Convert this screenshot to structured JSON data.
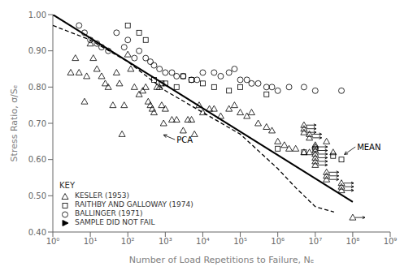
{
  "chart_data": {
    "type": "scatter",
    "xlabel": "Number of Load Repetitions to Failure, Nₑ",
    "ylabel": "Stress Ratio, σ/Sₑ",
    "log": "x",
    "xlim": [
      1,
      1000000000
    ],
    "xticks": [
      {
        "value": 1,
        "label": "10⁰"
      },
      {
        "value": 10,
        "label": "10¹"
      },
      {
        "value": 100,
        "label": "10²"
      },
      {
        "value": 1000,
        "label": "10³"
      },
      {
        "value": 10000,
        "label": "10⁴"
      },
      {
        "value": 100000,
        "label": "10⁵"
      },
      {
        "value": 1000000,
        "label": "10⁶"
      },
      {
        "value": 10000000,
        "label": "10⁷"
      },
      {
        "value": 100000000,
        "label": "10⁸"
      },
      {
        "value": 1000000000,
        "label": "10⁹"
      }
    ],
    "ylim": [
      0.4,
      1.0
    ],
    "yticks": [
      {
        "value": 0.4,
        "label": "0.40"
      },
      {
        "value": 0.5,
        "label": "0.50"
      },
      {
        "value": 0.6,
        "label": "0.60"
      },
      {
        "value": 0.7,
        "label": "0.70"
      },
      {
        "value": 0.8,
        "label": "0.80"
      },
      {
        "value": 0.9,
        "label": "0.90"
      },
      {
        "value": 1.0,
        "label": "1.00"
      }
    ],
    "grid": false,
    "legend": "lower left",
    "legend_title": "KEY",
    "series": [
      {
        "name": "KESLER (1953)",
        "color": "black",
        "marker": "triangle",
        "values": [
          [
            3,
            0.84
          ],
          [
            4,
            0.88
          ],
          [
            5,
            0.84
          ],
          [
            7,
            0.76
          ],
          [
            8,
            0.83
          ],
          [
            10,
            0.92
          ],
          [
            12,
            0.88
          ],
          [
            15,
            0.85
          ],
          [
            20,
            0.83
          ],
          [
            25,
            0.81
          ],
          [
            30,
            0.8
          ],
          [
            40,
            0.75
          ],
          [
            50,
            0.84
          ],
          [
            60,
            0.81
          ],
          [
            70,
            0.67
          ],
          [
            80,
            0.75
          ],
          [
            100,
            0.89
          ],
          [
            120,
            0.85
          ],
          [
            150,
            0.8
          ],
          [
            200,
            0.78
          ],
          [
            250,
            0.79
          ],
          [
            300,
            0.8
          ],
          [
            350,
            0.76
          ],
          [
            400,
            0.75
          ],
          [
            450,
            0.74
          ],
          [
            500,
            0.73
          ],
          [
            600,
            0.8
          ],
          [
            700,
            0.8
          ],
          [
            800,
            0.75
          ],
          [
            900,
            0.7
          ],
          [
            1000,
            0.74
          ],
          [
            1500,
            0.71
          ],
          [
            2000,
            0.71
          ],
          [
            3000,
            0.68
          ],
          [
            4000,
            0.71
          ],
          [
            5000,
            0.71
          ],
          [
            6000,
            0.67
          ],
          [
            8000,
            0.75
          ],
          [
            10000,
            0.73
          ],
          [
            15000,
            0.74
          ],
          [
            20000,
            0.74
          ],
          [
            30000,
            0.72
          ],
          [
            50000,
            0.74
          ],
          [
            70000,
            0.75
          ],
          [
            100000,
            0.73
          ],
          [
            150000,
            0.72
          ],
          [
            200000,
            0.73
          ],
          [
            300000,
            0.7
          ],
          [
            500000,
            0.69
          ],
          [
            700000,
            0.68
          ],
          [
            1000000,
            0.65
          ],
          [
            1500000,
            0.64
          ],
          [
            2000000,
            0.63
          ],
          [
            3000000,
            0.63
          ],
          [
            5000000,
            0.62
          ],
          [
            7000000,
            0.62
          ],
          [
            10000000,
            0.64
          ],
          [
            20000000,
            0.65
          ],
          [
            30000000,
            0.62
          ]
        ]
      },
      {
        "name": "RAITHBY AND GALLOWAY (1974)",
        "color": "black",
        "marker": "square",
        "values": [
          [
            100,
            0.97
          ],
          [
            200,
            0.95
          ],
          [
            300,
            0.93
          ],
          [
            500,
            0.82
          ],
          [
            800,
            0.81
          ],
          [
            1000,
            0.81
          ],
          [
            2000,
            0.8
          ],
          [
            3000,
            0.83
          ],
          [
            5000,
            0.82
          ],
          [
            10000,
            0.81
          ],
          [
            20000,
            0.8
          ],
          [
            50000,
            0.79
          ],
          [
            100000,
            0.8
          ],
          [
            500000,
            0.78
          ],
          [
            1000000,
            0.63
          ],
          [
            5000000,
            0.62
          ],
          [
            10000000,
            0.63
          ],
          [
            30000000,
            0.61
          ],
          [
            50000000,
            0.6
          ]
        ]
      },
      {
        "name": "BALLINGER (1971)",
        "color": "black",
        "marker": "circle",
        "values": [
          [
            5,
            0.97
          ],
          [
            7,
            0.95
          ],
          [
            10,
            0.93
          ],
          [
            15,
            0.92
          ],
          [
            20,
            0.91
          ],
          [
            30,
            0.9
          ],
          [
            50,
            0.95
          ],
          [
            80,
            0.91
          ],
          [
            100,
            0.93
          ],
          [
            150,
            0.88
          ],
          [
            200,
            0.9
          ],
          [
            300,
            0.88
          ],
          [
            400,
            0.87
          ],
          [
            500,
            0.86
          ],
          [
            700,
            0.85
          ],
          [
            1000,
            0.84
          ],
          [
            1500,
            0.84
          ],
          [
            2000,
            0.83
          ],
          [
            3000,
            0.83
          ],
          [
            5000,
            0.82
          ],
          [
            7000,
            0.82
          ],
          [
            10000,
            0.84
          ],
          [
            20000,
            0.84
          ],
          [
            30000,
            0.83
          ],
          [
            50000,
            0.84
          ],
          [
            70000,
            0.85
          ],
          [
            100000,
            0.82
          ],
          [
            150000,
            0.82
          ],
          [
            200000,
            0.81
          ],
          [
            300000,
            0.81
          ],
          [
            500000,
            0.8
          ],
          [
            700000,
            0.8
          ],
          [
            1000000,
            0.79
          ],
          [
            2000000,
            0.8
          ],
          [
            5000000,
            0.8
          ],
          [
            10000000,
            0.79
          ],
          [
            50000000,
            0.79
          ]
        ]
      },
      {
        "name": "SAMPLE DID NOT FAIL",
        "color": "black",
        "marker": "triangle_arrow",
        "values": [
          [
            5000000,
            0.695
          ],
          [
            5000000,
            0.685
          ],
          [
            5000000,
            0.675
          ],
          [
            7000000,
            0.67
          ],
          [
            7000000,
            0.66
          ],
          [
            10000000,
            0.635
          ],
          [
            10000000,
            0.625
          ],
          [
            10000000,
            0.615
          ],
          [
            10000000,
            0.605
          ],
          [
            10000000,
            0.595
          ],
          [
            10000000,
            0.585
          ],
          [
            20000000,
            0.565
          ],
          [
            20000000,
            0.555
          ],
          [
            20000000,
            0.545
          ],
          [
            50000000,
            0.535
          ],
          [
            50000000,
            0.525
          ],
          [
            50000000,
            0.515
          ],
          [
            100000000,
            0.44
          ]
        ]
      },
      {
        "type": "line",
        "color": "black",
        "line_style": "solid",
        "values": [
          [
            1,
            1.0
          ],
          [
            100000000,
            0.4832
          ]
        ]
      },
      {
        "type": "line",
        "color": "black",
        "line_style": "dashed",
        "values": [
          [
            1,
            0.97
          ],
          [
            10,
            0.93
          ],
          [
            100,
            0.87
          ],
          [
            1000,
            0.79
          ],
          [
            10000,
            0.73
          ],
          [
            100000,
            0.67
          ],
          [
            1000000,
            0.575
          ],
          [
            3162277.6601683795,
            0.52
          ],
          [
            10000000,
            0.47
          ],
          [
            31622776.60168379,
            0.455
          ]
        ]
      }
    ],
    "annotations": [
      {
        "text": "PCA",
        "x": 2000,
        "y": 0.655,
        "arrow_x": 900,
        "arrow_y": 0.668
      },
      {
        "text": "MEAN",
        "x": 130000000,
        "y": 0.635,
        "arrow_x": 60000000,
        "arrow_y": 0.614
      }
    ]
  }
}
